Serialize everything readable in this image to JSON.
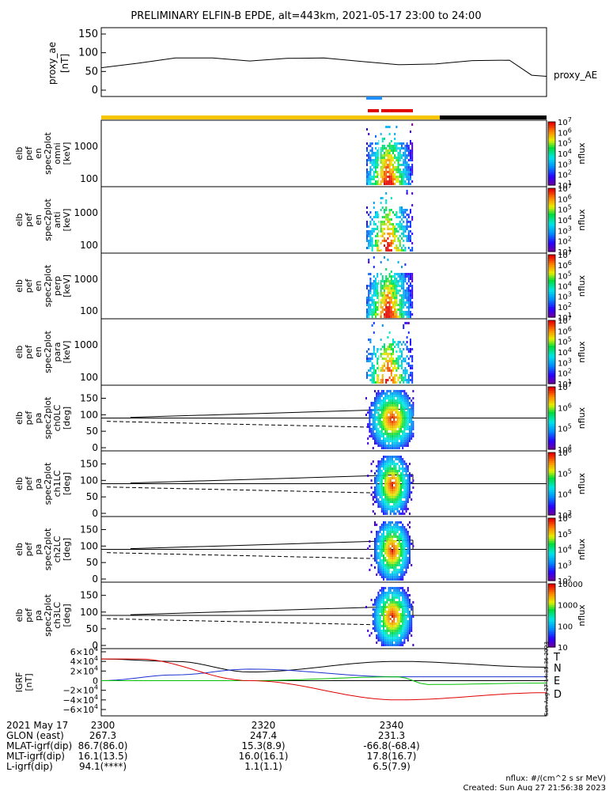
{
  "title": "PRELIMINARY ELFIN-B EPDE, alt=443km, 2021-05-17 23:00 to 24:00",
  "colors": {
    "orange": "#f7c600",
    "black": "#000000",
    "red": "#e00000",
    "blue": "#1e90ff",
    "green": "#00c000",
    "ae_red": "#e00000"
  },
  "bars": {
    "science": "orange then black",
    "markers": [
      "blue",
      "red"
    ]
  },
  "panels": [
    {
      "id": "proxy_ae",
      "ylabel": [
        "proxy_ae",
        "[nT]"
      ],
      "yticks": [
        "150",
        "100",
        "50",
        "0"
      ],
      "side_label": "proxy_AE"
    },
    {
      "id": "en_omni",
      "ylabel": [
        "elb",
        "pef",
        "en",
        "spec2plot",
        "omni",
        "[keV]"
      ],
      "yticks": [
        "1000",
        "100"
      ],
      "cb_label": "nflux",
      "cb_ticks": [
        "10^7",
        "10^6",
        "10^5",
        "10^4",
        "10^3",
        "10^2",
        "10^1"
      ]
    },
    {
      "id": "en_anti",
      "ylabel": [
        "elb",
        "pef",
        "en",
        "spec2plot",
        "anti",
        "[keV]"
      ],
      "yticks": [
        "1000",
        "100"
      ],
      "cb_label": "nflux",
      "cb_ticks": [
        "10^7",
        "10^6",
        "10^5",
        "10^4",
        "10^3",
        "10^2",
        "10^1"
      ]
    },
    {
      "id": "en_perp",
      "ylabel": [
        "elb",
        "pef",
        "en",
        "spec2plot",
        "perp",
        "[keV]"
      ],
      "yticks": [
        "1000",
        "100"
      ],
      "cb_label": "nflux",
      "cb_ticks": [
        "10^7",
        "10^6",
        "10^5",
        "10^4",
        "10^3",
        "10^2",
        "10^1"
      ]
    },
    {
      "id": "en_para",
      "ylabel": [
        "elb",
        "pef",
        "en",
        "spec2plot",
        "para",
        "[keV]"
      ],
      "yticks": [
        "1000",
        "100"
      ],
      "cb_label": "nflux",
      "cb_ticks": [
        "10^7",
        "10^6",
        "10^5",
        "10^4",
        "10^3",
        "10^2",
        "10^1"
      ]
    },
    {
      "id": "pa_ch0",
      "ylabel": [
        "elb",
        "pef",
        "pa",
        "spec2plot",
        "ch0LC",
        "[deg]"
      ],
      "yticks": [
        "150",
        "100",
        "50",
        "0"
      ],
      "cb_label": "nflux",
      "cb_ticks": [
        "10^7",
        "10^6",
        "10^5",
        "10^4"
      ]
    },
    {
      "id": "pa_ch1",
      "ylabel": [
        "elb",
        "pef",
        "pa",
        "spec2plot",
        "ch1LC",
        "[deg]"
      ],
      "yticks": [
        "150",
        "100",
        "50",
        "0"
      ],
      "cb_label": "nflux",
      "cb_ticks": [
        "10^6",
        "10^5",
        "10^4",
        "10^3"
      ]
    },
    {
      "id": "pa_ch2",
      "ylabel": [
        "elb",
        "pef",
        "pa",
        "spec2plot",
        "ch2LC",
        "[deg]"
      ],
      "yticks": [
        "150",
        "100",
        "50",
        "0"
      ],
      "cb_label": "nflux",
      "cb_ticks": [
        "10^6",
        "10^5",
        "10^4",
        "10^3",
        "10^2"
      ]
    },
    {
      "id": "pa_ch3",
      "ylabel": [
        "elb",
        "pef",
        "pa",
        "spec2plot",
        "ch3LC",
        "[deg]"
      ],
      "yticks": [
        "150",
        "100",
        "50",
        "0"
      ],
      "cb_label": "nflux",
      "cb_ticks": [
        "10000",
        "1000",
        "100",
        "10"
      ]
    },
    {
      "id": "igrf",
      "ylabel": [
        "IGRF",
        "[nT]"
      ],
      "yticks": [
        "6×10^4",
        "4×10^4",
        "2×10^4",
        "0",
        "−2×10^4",
        "−4×10^4",
        "−6×10^4"
      ],
      "legend": [
        "T",
        "N",
        "E",
        "D"
      ],
      "stamp": "Sun Aug 27 14:35:36 2023"
    }
  ],
  "footer": {
    "rows": [
      {
        "label": "2021 May 17",
        "vals": [
          "2300",
          "2320",
          "2340"
        ]
      },
      {
        "label": "GLON (east)",
        "vals": [
          "267.3",
          "247.4",
          "231.3"
        ]
      },
      {
        "label": "MLAT-igrf(dip)",
        "vals": [
          "86.7(86.0)",
          "15.3(8.9)",
          "-66.8(-68.4)"
        ]
      },
      {
        "label": "MLT-igrf(dip)",
        "vals": [
          "16.1(13.5)",
          "16.0(16.1)",
          "17.8(16.7)"
        ]
      },
      {
        "label": "L-igrf(dip)",
        "vals": [
          "94.1(****)",
          "1.1(1.1)",
          "6.5(7.9)"
        ]
      }
    ],
    "note": "nflux: #/(cm^2 s sr MeV)",
    "created": "Created: Sun Aug 27 21:56:38 2023"
  },
  "chart_data": {
    "type": "heatmap",
    "x_range_minutes": [
      0,
      60
    ],
    "x_start": "2021-05-17 23:00",
    "proxy_ae": {
      "t": [
        0,
        5,
        10,
        15,
        20,
        25,
        30,
        35,
        40,
        45,
        50,
        55,
        58,
        60
      ],
      "v": [
        60,
        72,
        86,
        86,
        78,
        85,
        86,
        77,
        68,
        70,
        79,
        80,
        40,
        37
      ]
    },
    "spectrogram_time_window": [
      36.5,
      40.5
    ],
    "igrf_series": [
      {
        "name": "T",
        "t": [
          0,
          10,
          20,
          40,
          60
        ],
        "v": [
          45000,
          40000,
          18000,
          40000,
          28000
        ]
      },
      {
        "name": "N",
        "t": [
          0,
          10,
          20,
          40,
          60
        ],
        "v": [
          0,
          12000,
          24000,
          8000,
          8000
        ]
      },
      {
        "name": "E",
        "t": [
          0,
          20,
          40,
          44,
          60
        ],
        "v": [
          0,
          0,
          8000,
          -8000,
          -5000
        ]
      },
      {
        "name": "D",
        "t": [
          0,
          5,
          20,
          40,
          60
        ],
        "v": [
          45000,
          45000,
          0,
          -40000,
          -25000
        ]
      }
    ]
  }
}
